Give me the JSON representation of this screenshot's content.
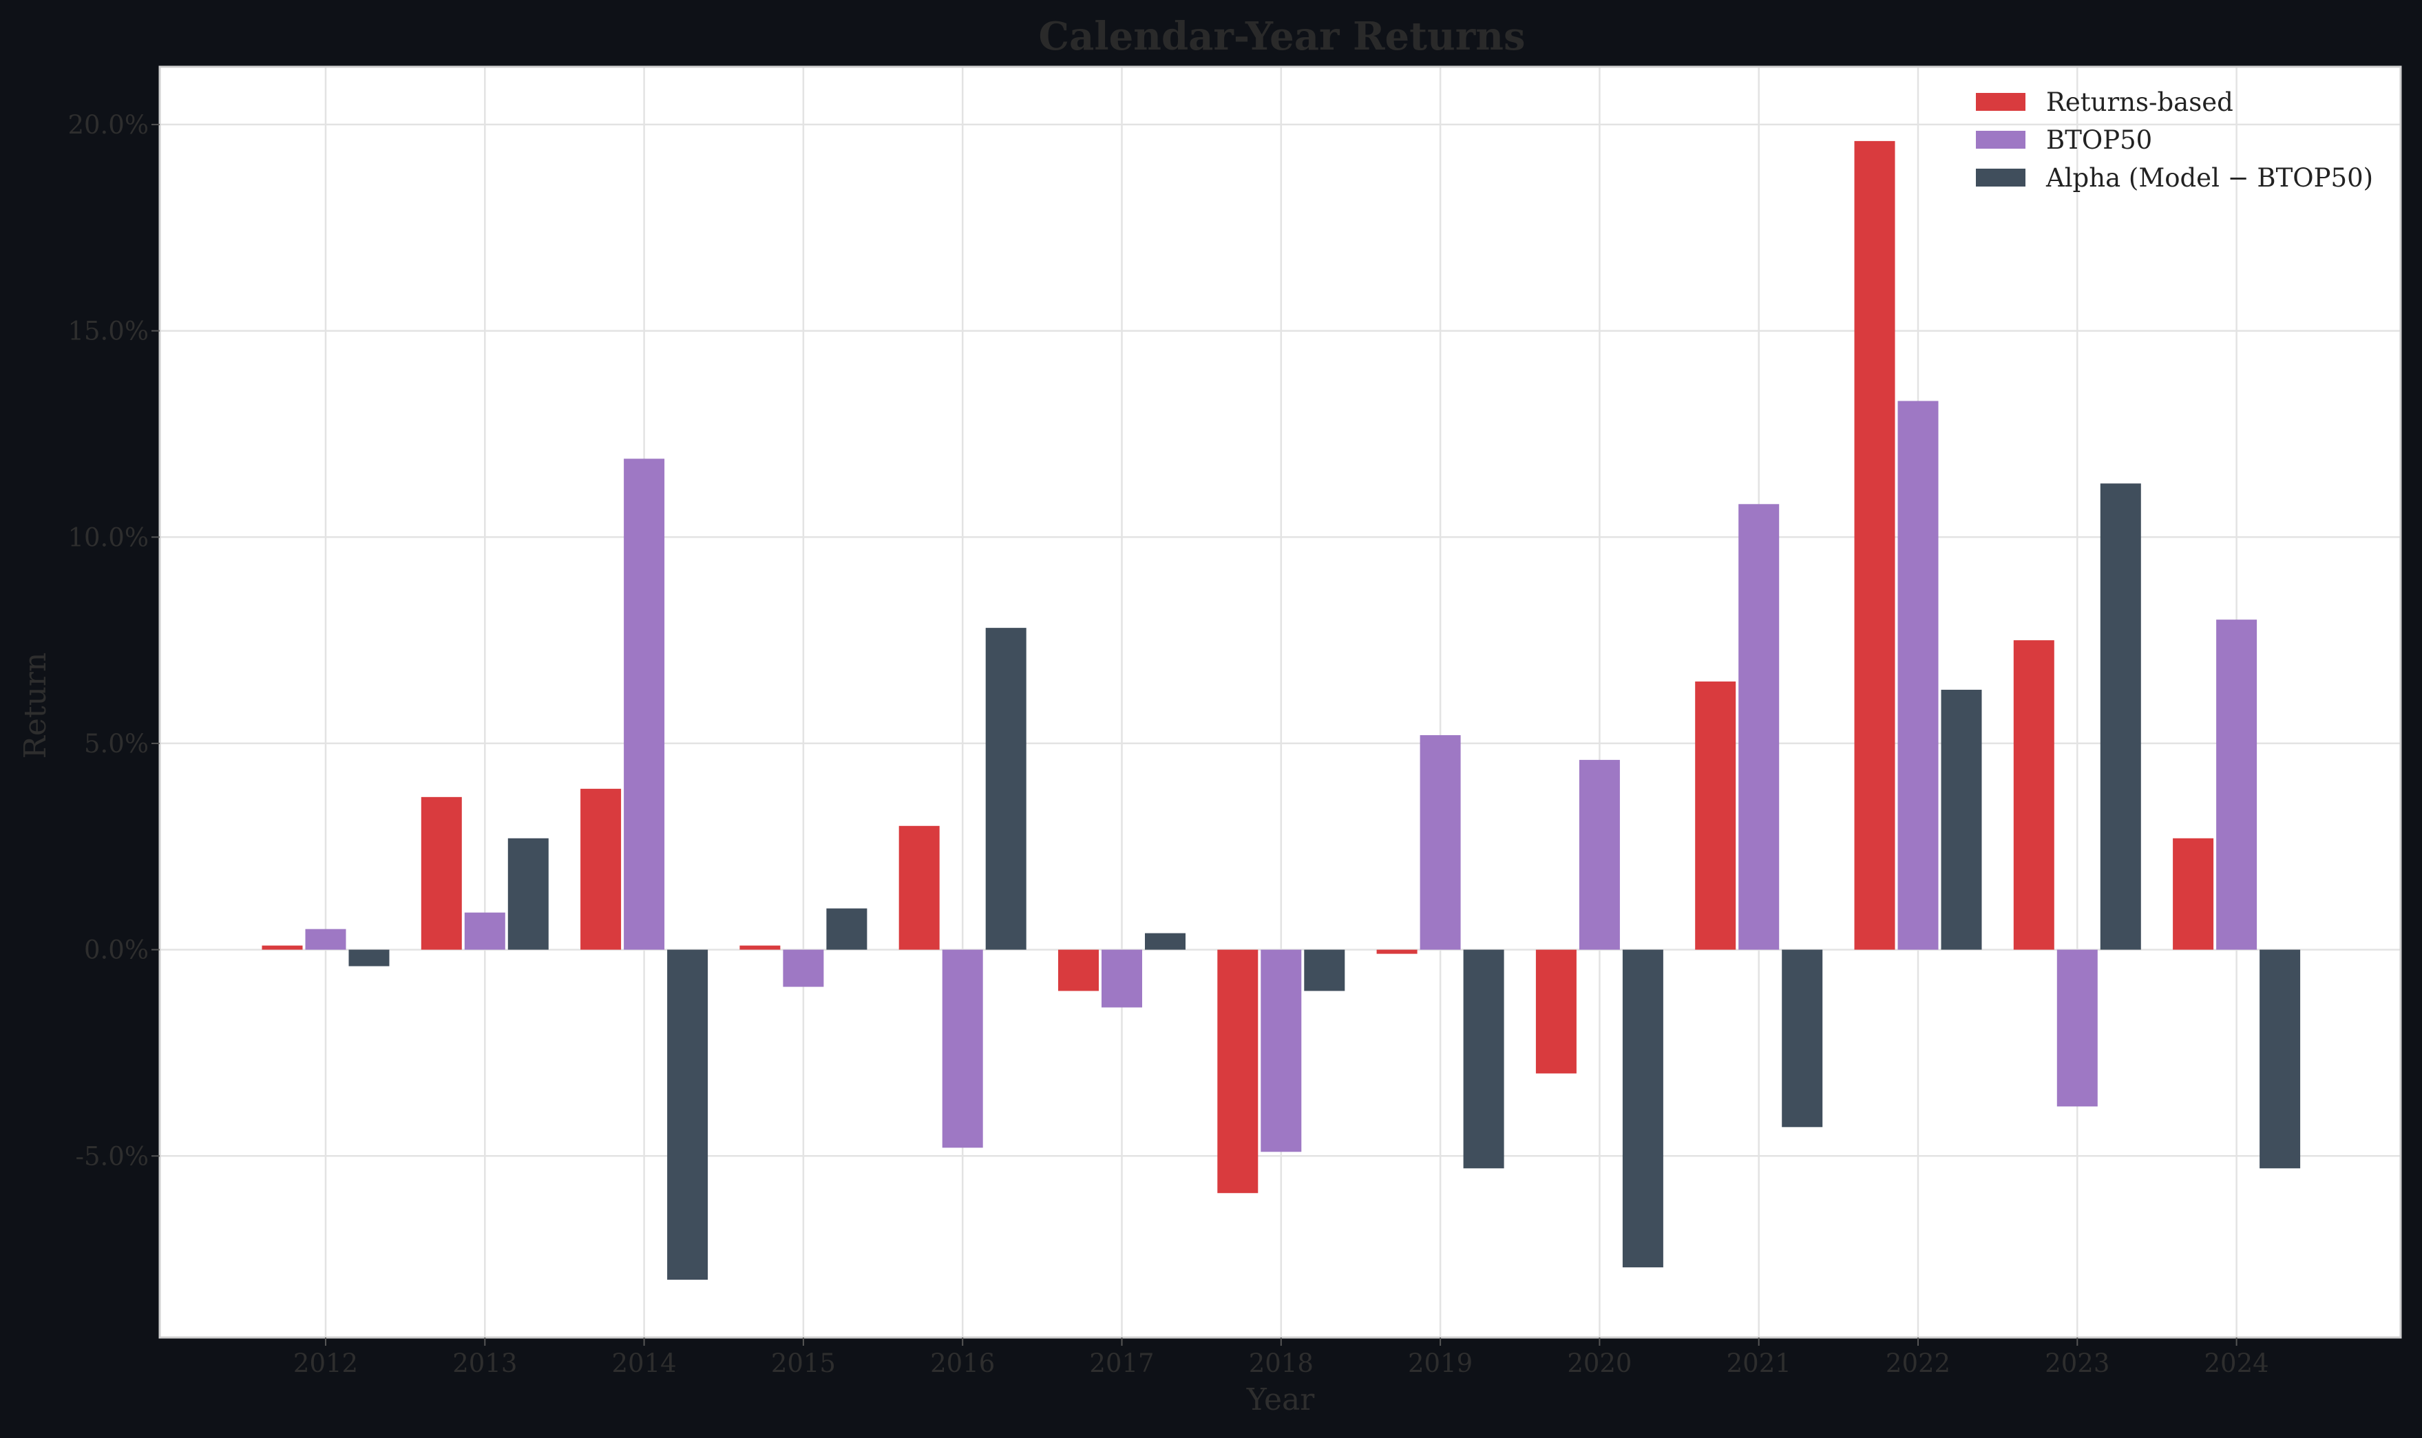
{
  "chart_data": {
    "type": "bar",
    "title": "Calendar-Year Returns",
    "xlabel": "Year",
    "ylabel": "Return",
    "categories": [
      "2012",
      "2013",
      "2014",
      "2015",
      "2016",
      "2017",
      "2018",
      "2019",
      "2020",
      "2021",
      "2022",
      "2023",
      "2024"
    ],
    "series": [
      {
        "name": "Returns-based",
        "color": "#d93b3e",
        "values": [
          0.1,
          3.7,
          3.9,
          0.1,
          3.0,
          -1.0,
          -5.9,
          -0.1,
          -3.0,
          6.5,
          19.6,
          7.5,
          2.7
        ]
      },
      {
        "name": "BTOP50",
        "color": "#9e78c4",
        "values": [
          0.5,
          0.9,
          11.9,
          -0.9,
          -4.8,
          -1.4,
          -4.9,
          5.2,
          4.6,
          10.8,
          13.3,
          -3.8,
          8.0
        ]
      },
      {
        "name": "Alpha (Model − BTOP50)",
        "color": "#404e5c",
        "values": [
          -0.4,
          2.7,
          -8.0,
          1.0,
          7.8,
          0.4,
          -1.0,
          -5.3,
          -7.7,
          -4.3,
          6.3,
          11.3,
          -5.3
        ]
      }
    ],
    "ylim": [
      -9.4,
      21.4
    ],
    "yticks": [
      -5,
      0,
      5,
      10,
      15,
      20
    ],
    "ytick_format": "percent_1dp",
    "grid": true,
    "legend_position": "top-right"
  }
}
